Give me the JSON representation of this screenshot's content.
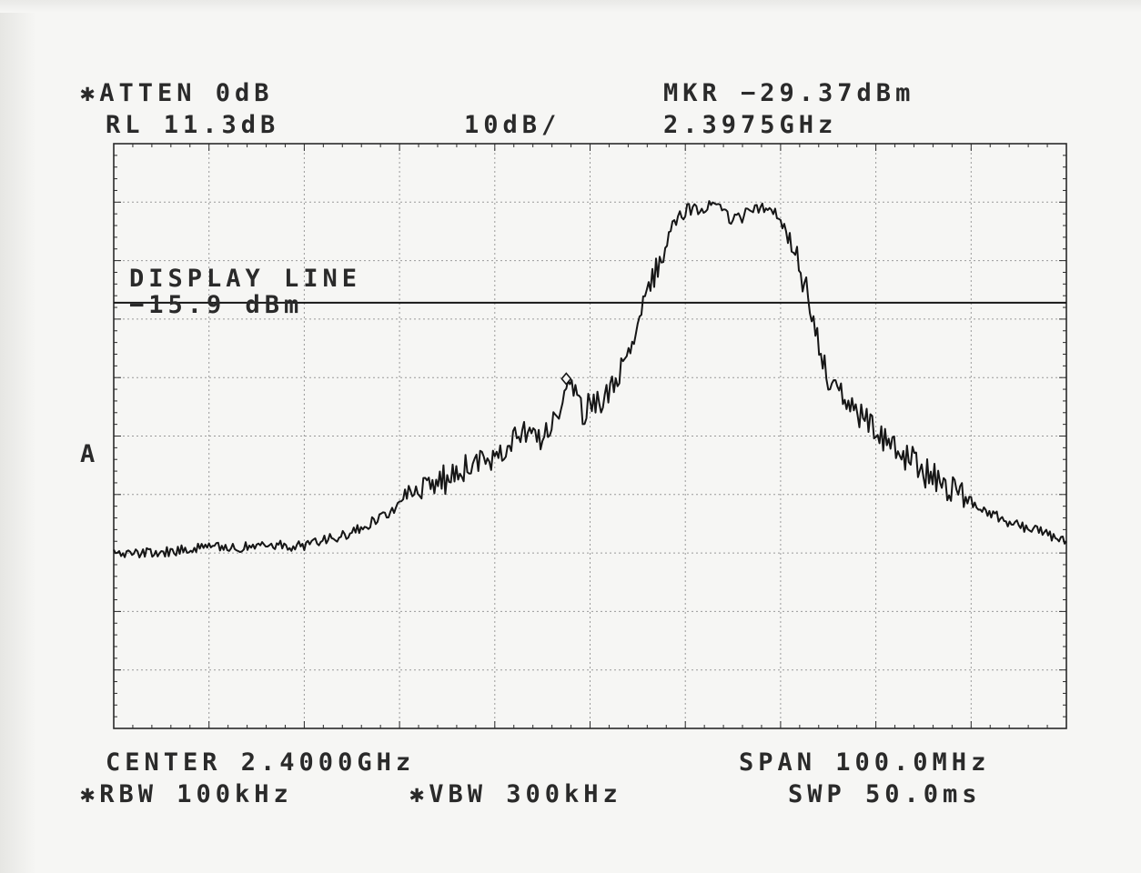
{
  "header": {
    "atten": "✱ATTEN 0dB",
    "ref_level": "RL 11.3dB",
    "scale": "10dB/",
    "marker_level": "MKR −29.37dBm",
    "marker_freq": "2.3975GHz"
  },
  "display_line": {
    "title": "DISPLAY LINE",
    "value_text": "−15.9 dBm"
  },
  "side_label": "A",
  "footer": {
    "center": "CENTER 2.4000GHz",
    "span": "SPAN 100.0MHz",
    "rbw": "✱RBW 100kHz",
    "vbw": "✱VBW 300kHz",
    "sweep": "SWP 50.0ms"
  },
  "colors": {
    "trace": "#161616",
    "grid": "#9a9a9a",
    "frame": "#2a2a2a",
    "paper": "#f6f6f4"
  },
  "chart_data": {
    "type": "line",
    "x_unit": "GHz",
    "y_unit": "dBm",
    "xlim": [
      2.35,
      2.45
    ],
    "ylim": [
      -88.7,
      11.3
    ],
    "grid": true,
    "divisions": {
      "x": 10,
      "y": 10
    },
    "reference_level_dbm": 11.3,
    "scale_db_per_div": 10,
    "display_line_dbm": -15.9,
    "marker": {
      "x": 2.3975,
      "y": -29.37
    },
    "series": [
      {
        "values_x": [
          2.35,
          2.355,
          2.36,
          2.365,
          2.37,
          2.375,
          2.378,
          2.381,
          2.384,
          2.387,
          2.39,
          2.393,
          2.395,
          2.3965,
          2.3975,
          2.399,
          2.401,
          2.403,
          2.405,
          2.407,
          2.409,
          2.4105,
          2.4135,
          2.415,
          2.4175,
          2.4185,
          2.4195,
          2.4215,
          2.4225,
          2.4235,
          2.425,
          2.4265,
          2.428,
          2.429,
          2.431,
          2.433,
          2.435,
          2.438,
          2.441,
          2.444,
          2.447,
          2.45
        ],
        "values_y": [
          -58.8,
          -58.6,
          -57.8,
          -57.6,
          -57.4,
          -55.3,
          -52.7,
          -49.4,
          -46.7,
          -44.1,
          -41.8,
          -37.4,
          -39.9,
          -35.8,
          -29.4,
          -34.3,
          -33.5,
          -29.1,
          -19.5,
          -9.8,
          -1.5,
          0.1,
          0.4,
          -2.1,
          0.6,
          0.2,
          -0.2,
          -7.5,
          -12.8,
          -19.5,
          -29.1,
          -32.1,
          -35.0,
          -36.5,
          -39.2,
          -41.9,
          -44.8,
          -47.6,
          -50.9,
          -53.6,
          -54.8,
          -56.9
        ]
      }
    ]
  }
}
